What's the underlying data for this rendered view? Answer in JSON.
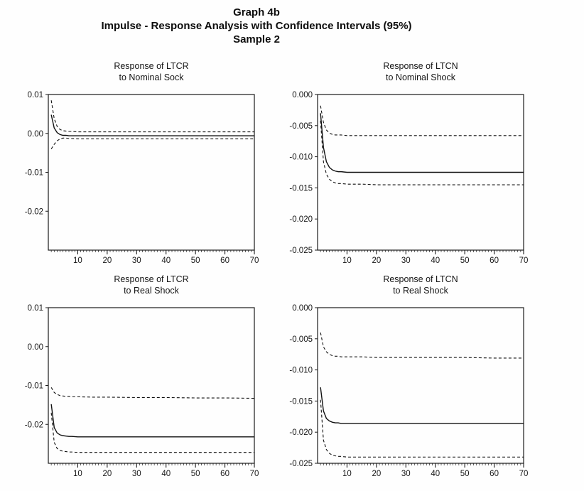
{
  "page": {
    "title_line1": "Graph 4b",
    "title_line2": "Impulse - Response Analysis with Confidence Intervals (95%)",
    "title_line3": "Sample 2"
  },
  "chart_data": [
    {
      "type": "line",
      "title_line1": "Response of LTCR",
      "title_line2": "to Nominal Sock",
      "xlim": [
        0,
        70
      ],
      "ylim": [
        0.01,
        -0.03
      ],
      "x": [
        1,
        2,
        3,
        4,
        5,
        6,
        7,
        8,
        10,
        15,
        20,
        30,
        40,
        50,
        60,
        70
      ],
      "series": [
        {
          "name": "upper-ci",
          "style": "dashed",
          "values": [
            0.0085,
            0.0038,
            0.0018,
            0.001,
            0.0007,
            0.0006,
            0.0005,
            0.0005,
            0.0004,
            0.0004,
            0.0004,
            0.0004,
            0.0004,
            0.0004,
            0.0004,
            0.0004
          ]
        },
        {
          "name": "response",
          "style": "solid",
          "values": [
            0.0048,
            0.0014,
            0.0002,
            -0.0003,
            -0.0005,
            -0.0005,
            -0.0006,
            -0.0006,
            -0.0006,
            -0.0006,
            -0.0006,
            -0.0006,
            -0.0006,
            -0.0006,
            -0.0006,
            -0.0006
          ]
        },
        {
          "name": "lower-ci",
          "style": "dashed",
          "values": [
            -0.004,
            -0.0028,
            -0.0019,
            -0.0014,
            -0.0012,
            -0.0012,
            -0.0013,
            -0.0013,
            -0.0014,
            -0.0014,
            -0.0014,
            -0.0014,
            -0.0014,
            -0.0014,
            -0.0014,
            -0.0014
          ]
        }
      ],
      "yticks": [
        0.01,
        0.0,
        -0.01,
        -0.02
      ],
      "ytick_labels": [
        "0.01",
        "0.00",
        "-0.01",
        "-0.02"
      ],
      "xticks": [
        10,
        20,
        30,
        40,
        50,
        60,
        70
      ],
      "xtick_labels": [
        "10",
        "20",
        "30",
        "40",
        "50",
        "60",
        "70"
      ]
    },
    {
      "type": "line",
      "title_line1": "Response of LTCN",
      "title_line2": "to Nominal Shock",
      "xlim": [
        0,
        70
      ],
      "ylim": [
        0.0,
        -0.025
      ],
      "x": [
        1,
        2,
        3,
        4,
        5,
        6,
        7,
        8,
        10,
        15,
        20,
        30,
        40,
        50,
        60,
        70
      ],
      "series": [
        {
          "name": "upper-ci",
          "style": "dashed",
          "values": [
            -0.0018,
            -0.0045,
            -0.0057,
            -0.0062,
            -0.0064,
            -0.0065,
            -0.0065,
            -0.0065,
            -0.0066,
            -0.0066,
            -0.0066,
            -0.0066,
            -0.0066,
            -0.0066,
            -0.0066,
            -0.0066
          ]
        },
        {
          "name": "response",
          "style": "solid",
          "values": [
            -0.003,
            -0.0085,
            -0.0108,
            -0.0117,
            -0.0121,
            -0.0123,
            -0.0124,
            -0.0124,
            -0.0125,
            -0.0125,
            -0.0125,
            -0.0125,
            -0.0125,
            -0.0125,
            -0.0125,
            -0.0125
          ]
        },
        {
          "name": "lower-ci",
          "style": "dashed",
          "values": [
            -0.0042,
            -0.0108,
            -0.0128,
            -0.0136,
            -0.014,
            -0.0142,
            -0.0143,
            -0.0143,
            -0.0144,
            -0.0144,
            -0.0145,
            -0.0145,
            -0.0145,
            -0.0145,
            -0.0145,
            -0.0145
          ]
        }
      ],
      "yticks": [
        0.0,
        -0.005,
        -0.01,
        -0.015,
        -0.02,
        -0.025
      ],
      "ytick_labels": [
        "0.000",
        "-0.005",
        "-0.010",
        "-0.015",
        "-0.020",
        "-0.025"
      ],
      "xticks": [
        10,
        20,
        30,
        40,
        50,
        60,
        70
      ],
      "xtick_labels": [
        "10",
        "20",
        "30",
        "40",
        "50",
        "60",
        "70"
      ]
    },
    {
      "type": "line",
      "title_line1": "Response of LTCR",
      "title_line2": "to Real Shock",
      "xlim": [
        0,
        70
      ],
      "ylim": [
        0.01,
        -0.03
      ],
      "x": [
        1,
        2,
        3,
        4,
        5,
        6,
        7,
        8,
        10,
        15,
        20,
        30,
        40,
        50,
        60,
        70
      ],
      "series": [
        {
          "name": "upper-ci",
          "style": "dashed",
          "values": [
            -0.0105,
            -0.0118,
            -0.0123,
            -0.0126,
            -0.0127,
            -0.0128,
            -0.0128,
            -0.0129,
            -0.0129,
            -0.013,
            -0.013,
            -0.0131,
            -0.0131,
            -0.0132,
            -0.0132,
            -0.0133
          ]
        },
        {
          "name": "response",
          "style": "solid",
          "values": [
            -0.0148,
            -0.0208,
            -0.0222,
            -0.0227,
            -0.0229,
            -0.023,
            -0.0231,
            -0.0231,
            -0.0232,
            -0.0232,
            -0.0232,
            -0.0232,
            -0.0232,
            -0.0232,
            -0.0232,
            -0.0232
          ]
        },
        {
          "name": "lower-ci",
          "style": "dashed",
          "values": [
            -0.017,
            -0.0246,
            -0.0262,
            -0.0267,
            -0.0269,
            -0.027,
            -0.0271,
            -0.0271,
            -0.0272,
            -0.0272,
            -0.0272,
            -0.0272,
            -0.0272,
            -0.0272,
            -0.0272,
            -0.0272
          ]
        }
      ],
      "yticks": [
        0.01,
        0.0,
        -0.01,
        -0.02
      ],
      "ytick_labels": [
        "0.01",
        "0.00",
        "-0.01",
        "-0.02"
      ],
      "xticks": [
        10,
        20,
        30,
        40,
        50,
        60,
        70
      ],
      "xtick_labels": [
        "10",
        "20",
        "30",
        "40",
        "50",
        "60",
        "70"
      ]
    },
    {
      "type": "line",
      "title_line1": "Response of LTCN",
      "title_line2": "to Real Shock",
      "xlim": [
        0,
        70
      ],
      "ylim": [
        0.0,
        -0.025
      ],
      "x": [
        1,
        2,
        3,
        4,
        5,
        6,
        7,
        8,
        10,
        15,
        20,
        30,
        40,
        50,
        60,
        70
      ],
      "series": [
        {
          "name": "upper-ci",
          "style": "dashed",
          "values": [
            -0.004,
            -0.0063,
            -0.0071,
            -0.0075,
            -0.0077,
            -0.0078,
            -0.0078,
            -0.0079,
            -0.0079,
            -0.0079,
            -0.008,
            -0.008,
            -0.008,
            -0.008,
            -0.0081,
            -0.0081
          ]
        },
        {
          "name": "response",
          "style": "solid",
          "values": [
            -0.0128,
            -0.0166,
            -0.0178,
            -0.0182,
            -0.0184,
            -0.0185,
            -0.0185,
            -0.0186,
            -0.0186,
            -0.0186,
            -0.0186,
            -0.0186,
            -0.0186,
            -0.0186,
            -0.0186,
            -0.0186
          ]
        },
        {
          "name": "lower-ci",
          "style": "dashed",
          "values": [
            -0.0148,
            -0.0213,
            -0.0228,
            -0.0234,
            -0.0237,
            -0.0238,
            -0.0239,
            -0.0239,
            -0.024,
            -0.024,
            -0.024,
            -0.024,
            -0.024,
            -0.024,
            -0.024,
            -0.024
          ]
        }
      ],
      "yticks": [
        0.0,
        -0.005,
        -0.01,
        -0.015,
        -0.02,
        -0.025
      ],
      "ytick_labels": [
        "0.000",
        "-0.005",
        "-0.010",
        "-0.015",
        "-0.020",
        "-0.025"
      ],
      "xticks": [
        10,
        20,
        30,
        40,
        50,
        60,
        70
      ],
      "xtick_labels": [
        "10",
        "20",
        "30",
        "40",
        "50",
        "60",
        "70"
      ]
    }
  ]
}
